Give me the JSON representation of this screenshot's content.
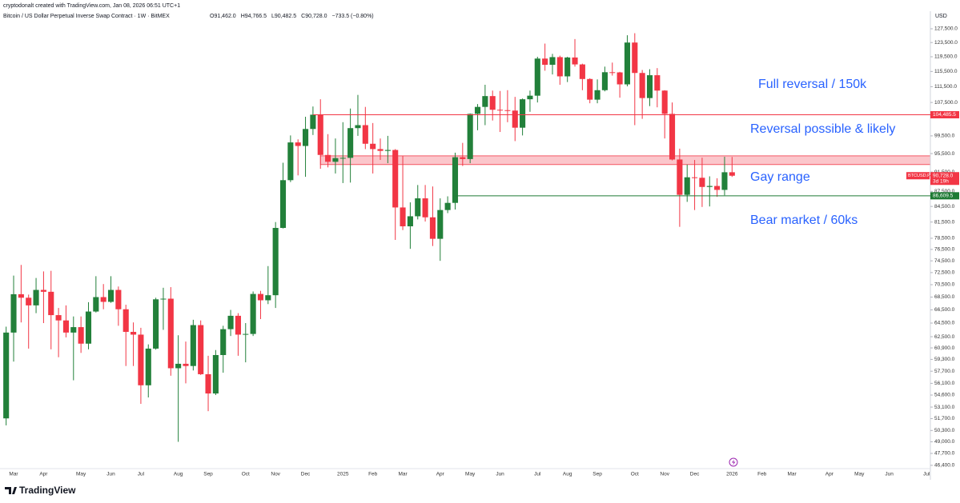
{
  "chart_data": {
    "type": "candlestick",
    "attribution": "cryptodonalt created with TradingView.com, Jan 08, 2026 06:51 UTC+1",
    "title": "Bitcoin / US Dollar Perpetual Inverse Swap Contract · 1W · BitMEX",
    "ohlc_labels": [
      "O91,462.0",
      "H94,766.5",
      "L90,482.5",
      "C90,728.0",
      "−733.5 (−0.80%)"
    ],
    "currency": "USD",
    "brand": "TradingView",
    "categories": [
      null,
      "Mar",
      null,
      null,
      null,
      "Apr",
      null,
      null,
      null,
      null,
      "May",
      null,
      null,
      null,
      "Jun",
      null,
      null,
      null,
      "Jul",
      null,
      null,
      null,
      null,
      "Aug",
      null,
      null,
      null,
      "Sep",
      null,
      null,
      null,
      null,
      "Oct",
      null,
      null,
      null,
      "Nov",
      null,
      null,
      null,
      "Dec",
      null,
      null,
      null,
      null,
      "2025",
      null,
      null,
      null,
      "Feb",
      null,
      null,
      null,
      "Mar",
      null,
      null,
      null,
      null,
      "Apr",
      null,
      null,
      null,
      "May",
      null,
      null,
      null,
      "Jun",
      null,
      null,
      null,
      null,
      "Jul",
      null,
      null,
      null,
      "Aug",
      null,
      null,
      null,
      "Sep",
      null,
      null,
      null,
      null,
      "Oct",
      null,
      null,
      null,
      "Nov",
      null,
      null,
      null,
      "Dec",
      null,
      null,
      null,
      null,
      "2026",
      null,
      null,
      null,
      "Feb",
      null,
      null,
      null,
      "Mar",
      null,
      null,
      null,
      null,
      "Apr",
      null,
      null,
      null,
      "May",
      null,
      null,
      null,
      "Jun",
      null,
      null,
      null,
      null,
      "Jul"
    ],
    "open": [
      51730,
      63100,
      68960,
      68400,
      67200,
      69650,
      69350,
      65700,
      64900,
      63100,
      63900,
      61500,
      66250,
      68500,
      67750,
      69650,
      66600,
      63200,
      62800,
      55850,
      60800,
      68150,
      68250,
      58100,
      58700,
      58400,
      64200,
      57300,
      54800,
      59900,
      63600,
      65600,
      62800,
      62900,
      69000,
      68000,
      68800,
      80400,
      89800,
      98000,
      97200,
      101100,
      104500,
      95200,
      93700,
      94500,
      94560,
      101300,
      102000,
      97700,
      96500,
      96100,
      96300,
      84300,
      80700,
      82600,
      86100,
      82400,
      78400,
      83800,
      85200,
      94700,
      94300,
      104700,
      106400,
      109100,
      105700,
      105600,
      105500,
      101400,
      108300,
      109200,
      119000,
      117300,
      119400,
      114200,
      119300,
      117400,
      113500,
      108200,
      110600,
      115300,
      115250,
      112100,
      123500,
      115100,
      108600,
      114500,
      110500,
      104700,
      94200,
      86800,
      90400,
      90300,
      88400,
      88600,
      87800,
      91462,
      null,
      null,
      null,
      null,
      null,
      null,
      null,
      null,
      null,
      null,
      null,
      null,
      null,
      null,
      null,
      null,
      null,
      null,
      null,
      null,
      null,
      null,
      null,
      null,
      null,
      null
    ],
    "high": [
      63970,
      72000,
      73800,
      68900,
      71600,
      72700,
      72800,
      66800,
      67200,
      65500,
      65500,
      67700,
      71900,
      70600,
      71900,
      70200,
      67300,
      64600,
      63800,
      61400,
      68400,
      70000,
      70100,
      62700,
      61800,
      65000,
      64900,
      59800,
      60600,
      64100,
      66500,
      66000,
      64500,
      69400,
      69500,
      73600,
      81500,
      93500,
      99600,
      98700,
      104000,
      106500,
      108300,
      99900,
      98900,
      102700,
      106000,
      109400,
      106400,
      102500,
      98900,
      99500,
      96500,
      95000,
      85300,
      88800,
      88800,
      88500,
      86100,
      86500,
      95700,
      97900,
      104800,
      107100,
      112000,
      110500,
      110400,
      110600,
      108900,
      108500,
      110500,
      119500,
      123200,
      120300,
      119800,
      119500,
      124500,
      117600,
      113700,
      113400,
      116800,
      117900,
      115400,
      125600,
      126200,
      115900,
      116100,
      116400,
      110600,
      107500,
      96600,
      93100,
      94100,
      94600,
      90600,
      90200,
      94800,
      94766.5,
      null,
      null,
      null,
      null,
      null,
      null,
      null,
      null,
      null,
      null,
      null,
      null,
      null,
      null,
      null,
      null,
      null,
      null,
      null,
      null,
      null,
      null,
      null,
      null,
      null,
      null
    ],
    "low": [
      50900,
      59000,
      64600,
      60800,
      66000,
      64500,
      60700,
      59600,
      62400,
      56500,
      60200,
      60700,
      66100,
      66600,
      67600,
      64100,
      58400,
      58400,
      53500,
      54300,
      60650,
      63500,
      57100,
      49000,
      56100,
      57800,
      57200,
      52600,
      54600,
      57500,
      62600,
      59800,
      58900,
      62600,
      65100,
      67400,
      66800,
      80300,
      89400,
      90800,
      90500,
      99700,
      92200,
      92500,
      91200,
      89200,
      89300,
      99500,
      96500,
      91200,
      94100,
      93400,
      78200,
      80000,
      76600,
      82000,
      81600,
      77100,
      74500,
      83200,
      83900,
      92800,
      93400,
      100800,
      102000,
      103100,
      100400,
      102700,
      98300,
      99600,
      105200,
      107500,
      115700,
      114700,
      112000,
      112700,
      116800,
      110600,
      107300,
      107300,
      110300,
      114400,
      108700,
      111600,
      102000,
      103500,
      106600,
      106300,
      98900,
      94000,
      80600,
      85400,
      83800,
      84400,
      84500,
      86400,
      86700,
      90482.5,
      null,
      null,
      null,
      null,
      null,
      null,
      null,
      null,
      null,
      null,
      null,
      null,
      null,
      null,
      null,
      null,
      null,
      null,
      null,
      null,
      null,
      null,
      null,
      null,
      null,
      null
    ],
    "close": [
      63100,
      68960,
      68400,
      67200,
      69650,
      69350,
      65700,
      64900,
      63100,
      63900,
      61500,
      66250,
      68500,
      67750,
      69650,
      66600,
      63200,
      62800,
      55850,
      60800,
      68150,
      68250,
      58100,
      58700,
      58400,
      64200,
      57300,
      54800,
      59900,
      63600,
      65600,
      62800,
      62900,
      69000,
      68000,
      68800,
      80400,
      89800,
      98000,
      97200,
      101100,
      104500,
      95200,
      93700,
      94500,
      94560,
      101300,
      102000,
      97700,
      96500,
      96100,
      96300,
      84300,
      80700,
      82600,
      86100,
      82400,
      78400,
      83800,
      85200,
      94700,
      94300,
      104700,
      106400,
      109100,
      105700,
      105600,
      105500,
      101400,
      108300,
      109200,
      119000,
      117300,
      119400,
      114200,
      119300,
      117400,
      113500,
      108200,
      110600,
      115300,
      115250,
      112100,
      123500,
      115100,
      108600,
      114500,
      110500,
      104700,
      94200,
      86800,
      90400,
      90300,
      88400,
      88600,
      87800,
      91462,
      90728,
      null,
      null,
      null,
      null,
      null,
      null,
      null,
      null,
      null,
      null,
      null,
      null,
      null,
      null,
      null,
      null,
      null,
      null,
      null,
      null,
      null,
      null,
      null,
      null,
      null,
      null
    ],
    "up_color": "#22803a",
    "down_color": "#f23645",
    "log": true,
    "grid": false,
    "ylim": [
      46050,
      132550
    ],
    "yticks": [
      {
        "value": 127500,
        "label": "127,500.0"
      },
      {
        "value": 123500,
        "label": "123,500.0"
      },
      {
        "value": 119500,
        "label": "119,500.0"
      },
      {
        "value": 115500,
        "label": "115,500.0"
      },
      {
        "value": 111500,
        "label": "111,500.0"
      },
      {
        "value": 107500,
        "label": "107,500.0"
      },
      {
        "value": 99500,
        "label": "99,500.0"
      },
      {
        "value": 95500,
        "label": "95,500.0"
      },
      {
        "value": 91500,
        "label": "91,500.0"
      },
      {
        "value": 87500,
        "label": "87,500.0"
      },
      {
        "value": 84500,
        "label": "84,500.0"
      },
      {
        "value": 81500,
        "label": "81,500.0"
      },
      {
        "value": 78500,
        "label": "78,500.0"
      },
      {
        "value": 76500,
        "label": "76,500.0"
      },
      {
        "value": 74500,
        "label": "74,500.0"
      },
      {
        "value": 72500,
        "label": "72,500.0"
      },
      {
        "value": 70500,
        "label": "70,500.0"
      },
      {
        "value": 68500,
        "label": "68,500.0"
      },
      {
        "value": 66500,
        "label": "66,500.0"
      },
      {
        "value": 64500,
        "label": "64,500.0"
      },
      {
        "value": 62500,
        "label": "62,500.0"
      },
      {
        "value": 60900,
        "label": "60,900.0"
      },
      {
        "value": 59300,
        "label": "59,300.0"
      },
      {
        "value": 57700,
        "label": "57,700.0"
      },
      {
        "value": 56100,
        "label": "56,100.0"
      },
      {
        "value": 54600,
        "label": "54,600.0"
      },
      {
        "value": 53100,
        "label": "53,100.0"
      },
      {
        "value": 51700,
        "label": "51,700.0"
      },
      {
        "value": 50300,
        "label": "50,300.0"
      },
      {
        "value": 49000,
        "label": "49,000.0"
      },
      {
        "value": 47700,
        "label": "47,700.0"
      },
      {
        "value": 46400,
        "label": "46,400.0"
      }
    ],
    "levels": [
      {
        "value": 104485.5,
        "label": "104,485.5",
        "color": "#f23645"
      },
      {
        "value": 86609.5,
        "label": "86,609.5",
        "color": "#1e7a34"
      }
    ],
    "zones": [
      {
        "from": 93100,
        "to": 95000,
        "color": "#f9b3b9"
      }
    ],
    "last_price": {
      "value": 90728,
      "label": "90,728.0"
    },
    "symbol_tag": "BTCUSD.P",
    "countdown": "3d 19h",
    "annotations": [
      "Full reversal / 150k",
      "Reversal possible & likely",
      "Gay range",
      "Bear market / 60ks"
    ]
  }
}
